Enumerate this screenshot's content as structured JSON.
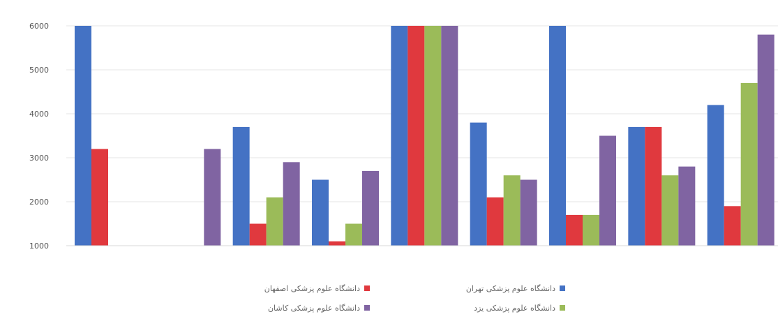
{
  "chart_data": {
    "type": "bar",
    "title": "",
    "xlabel": "",
    "ylabel": "",
    "yticks": [
      "1000",
      "2000",
      "3000",
      "4000",
      "5000",
      "6000"
    ],
    "ylim": [
      1000,
      6000
    ],
    "grid": true,
    "legend_position": "bottom",
    "categories": [
      "",
      "",
      "",
      "",
      "",
      "",
      "",
      "",
      ""
    ],
    "series": [
      {
        "name": "دانشگاه علوم پزشکی تهران",
        "color": "#4472C4",
        "values": [
          6000,
          null,
          3700,
          2500,
          6000,
          3800,
          6000,
          3700,
          4200
        ]
      },
      {
        "name": "دانشگاه علوم پزشکی اصفهان",
        "color": "#E0393E",
        "values": [
          3200,
          null,
          1500,
          1100,
          6000,
          2100,
          1700,
          3700,
          1900
        ]
      },
      {
        "name": "دانشگاه علوم پزشکی یزد",
        "color": "#9BBB59",
        "values": [
          null,
          null,
          2100,
          1500,
          6000,
          2600,
          1700,
          2600,
          4700
        ]
      },
      {
        "name": "دانشگاه علوم پزشکی کاشان",
        "color": "#8064A2",
        "values": [
          null,
          3200,
          2900,
          2700,
          6000,
          2500,
          3500,
          2800,
          5800
        ]
      }
    ]
  }
}
